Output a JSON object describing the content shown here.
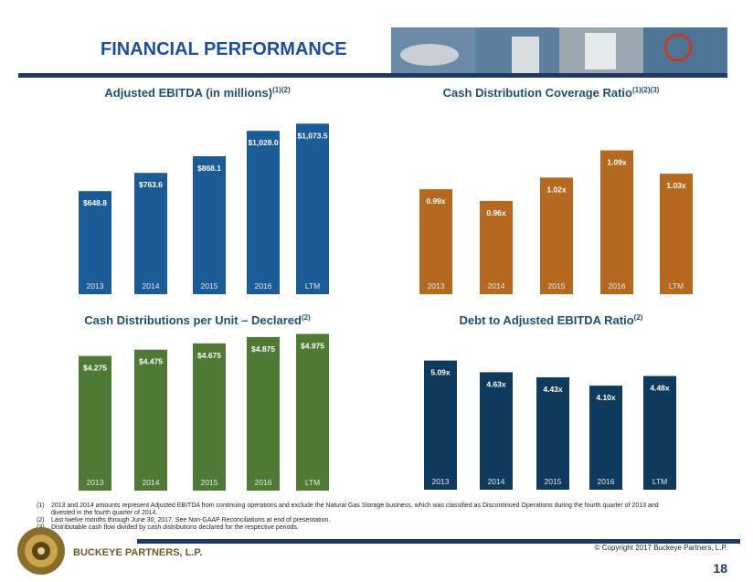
{
  "header": {
    "title": "FINANCIAL PERFORMANCE"
  },
  "chart_data": [
    {
      "type": "bar",
      "title": "Adjusted EBITDA (in millions)",
      "title_note": "(1)(2)",
      "categories": [
        "2013",
        "2014",
        "2015",
        "2016",
        "LTM"
      ],
      "values": [
        648.8,
        763.6,
        868.1,
        1028.0,
        1073.5
      ],
      "value_labels": [
        "$648.8",
        "$763.6",
        "$868.1",
        "$1,028.0",
        "$1,073.5"
      ],
      "color": "#1b5b98",
      "ylim": [
        0,
        1150
      ]
    },
    {
      "type": "bar",
      "title": "Cash Distribution Coverage Ratio",
      "title_note": "(1)(2)(3)",
      "categories": [
        "2013",
        "2014",
        "2015",
        "2016",
        "LTM"
      ],
      "values": [
        0.99,
        0.96,
        1.02,
        1.09,
        1.03
      ],
      "value_labels": [
        "0.99x",
        "0.96x",
        "1.02x",
        "1.09x",
        "1.03x"
      ],
      "color": "#b5681f",
      "ylim": [
        0.72,
        1.19
      ]
    },
    {
      "type": "bar",
      "title": "Cash Distributions per Unit – Declared",
      "title_note": "(2)",
      "categories": [
        "2013",
        "2014",
        "2015",
        "2016",
        "LTM"
      ],
      "values": [
        4.275,
        4.475,
        4.675,
        4.875,
        4.975
      ],
      "value_labels": [
        "$4.275",
        "$4.475",
        "$4.675",
        "$4.875",
        "$4.975"
      ],
      "color": "#4f7a36",
      "ylim": [
        0,
        5.8
      ]
    },
    {
      "type": "bar",
      "title": "Debt to Adjusted EBITDA Ratio",
      "title_note": "(2)",
      "categories": [
        "2013",
        "2014",
        "2015",
        "2016",
        "LTM"
      ],
      "values": [
        5.09,
        4.63,
        4.43,
        4.1,
        4.48
      ],
      "value_labels": [
        "5.09x",
        "4.63x",
        "4.43x",
        "4.10x",
        "4.48x"
      ],
      "color": "#0e3a5e",
      "ylim": [
        0,
        7.2
      ]
    }
  ],
  "footnotes": [
    {
      "marker": "(1)",
      "text": "2013 and 2014 amounts represent Adjusted EBITDA from continuing operations and exclude the Natural Gas Storage business, which was classified as Discontinued Operations during the fourth quarter of 2013 and"
    },
    {
      "marker": "",
      "text": "divested in the fourth quarter of 2014."
    },
    {
      "marker": "(2)",
      "text": "Last twelve months through June 30, 2017. See Non-GAAP Reconciliations at end of presentation."
    },
    {
      "marker": "(3)",
      "text": "Distributable cash flow divided by cash distributions declared for the respective periods."
    }
  ],
  "footer": {
    "company": "BUCKEYE PARTNERS, L.P.",
    "copyright": "© Copyright 2017 Buckeye Partners, L.P.",
    "page": "18"
  }
}
